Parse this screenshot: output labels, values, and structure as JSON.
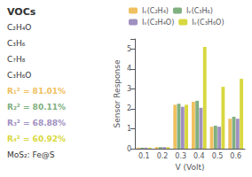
{
  "chart_data": {
    "type": "bar",
    "xlabel": "V (Volt)",
    "ylabel": "Sensor Response",
    "categories": [
      "0.1",
      "0.2",
      "0.3",
      "0.4",
      "0.5",
      "0.6"
    ],
    "series": [
      {
        "name": "Iᵥ(C₂H₄)",
        "color": "#f0c060",
        "values": [
          0.05,
          0.08,
          2.2,
          2.35,
          1.1,
          1.5
        ]
      },
      {
        "name": "Iᵥ(C₃H₆)",
        "color": "#80b080",
        "values": [
          0.05,
          0.08,
          2.25,
          2.4,
          1.15,
          1.6
        ]
      },
      {
        "name": "Iᵥ(C₂H₄O)",
        "color": "#a090c0",
        "values": [
          0.05,
          0.08,
          2.1,
          2.05,
          1.1,
          1.5
        ]
      },
      {
        "name": "Iᵥ(C₃H₆O)",
        "color": "#d8d840",
        "values": [
          0.05,
          0.08,
          2.2,
          5.1,
          3.1,
          3.5
        ]
      }
    ],
    "ylim": [
      0,
      5.5
    ],
    "yticks": [
      0,
      1,
      2,
      3,
      4,
      5
    ],
    "grid": false,
    "legend": "top",
    "annotations": [
      {
        "text": "VOCs"
      },
      {
        "text": "C₂H₄O"
      },
      {
        "text": "C₃H₆"
      },
      {
        "text": "C₇H₈"
      },
      {
        "text": "C₃H₆O"
      },
      {
        "text": "R₁² = 81.01%",
        "color": "#f0c060"
      },
      {
        "text": "R₂² = 80.11%",
        "color": "#80b080"
      },
      {
        "text": "R₃² = 68.88%",
        "color": "#a090c0"
      },
      {
        "text": "R₄² = 60.92%",
        "color": "#d8d840"
      },
      {
        "text": "MoS₂: Fe@S"
      }
    ]
  }
}
